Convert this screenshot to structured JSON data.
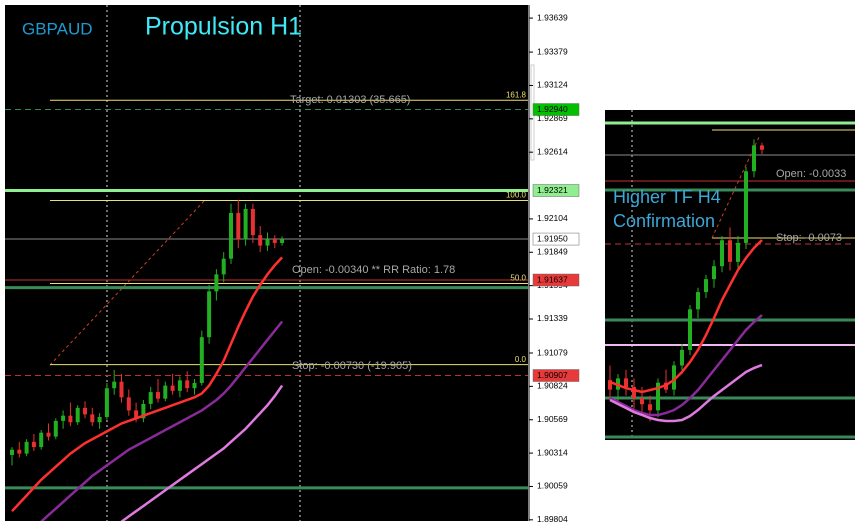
{
  "chart_data": [
    {
      "type": "candlestick",
      "symbol": "GBPAUD",
      "title": "Propulsion H1",
      "ylim": [
        1.89795,
        1.93739
      ],
      "yticks": [
        1.93639,
        1.93379,
        1.93124,
        1.92869,
        1.92614,
        1.92104,
        1.91849,
        1.91594,
        1.91339,
        1.91079,
        1.90824,
        1.90569,
        1.90314,
        1.90059,
        1.89804
      ],
      "up_color": "#22b022",
      "down_color": "#e83030",
      "open": [
        1.903,
        1.9034,
        1.9031,
        1.904,
        1.9036,
        1.9047,
        1.9044,
        1.9056,
        1.906,
        1.9055,
        1.9066,
        1.9061,
        1.9055,
        1.9059,
        1.9081,
        1.9086,
        1.9074,
        1.9064,
        1.9058,
        1.9069,
        1.9078,
        1.9073,
        1.9083,
        1.9079,
        1.9087,
        1.9081,
        1.9085,
        1.912,
        1.9155,
        1.9168,
        1.918,
        1.9215,
        1.9195,
        1.9218,
        1.9198,
        1.919,
        1.9195,
        1.9192
      ],
      "high": [
        1.9036,
        1.904,
        1.9042,
        1.9046,
        1.9049,
        1.9054,
        1.9058,
        1.9064,
        1.907,
        1.9068,
        1.9071,
        1.9066,
        1.9062,
        1.9085,
        1.9095,
        1.9092,
        1.908,
        1.907,
        1.9072,
        1.9082,
        1.9088,
        1.9086,
        1.9092,
        1.909,
        1.9094,
        1.9088,
        1.9125,
        1.916,
        1.9172,
        1.9185,
        1.9222,
        1.9225,
        1.9222,
        1.9222,
        1.9205,
        1.92,
        1.9198,
        1.9197
      ],
      "low": [
        1.9022,
        1.9028,
        1.9029,
        1.9033,
        1.9034,
        1.9041,
        1.9042,
        1.905,
        1.9052,
        1.9053,
        1.9058,
        1.9052,
        1.905,
        1.9057,
        1.9076,
        1.907,
        1.906,
        1.9055,
        1.9055,
        1.9065,
        1.907,
        1.9071,
        1.9076,
        1.9074,
        1.9078,
        1.9076,
        1.9083,
        1.9115,
        1.9148,
        1.9162,
        1.9176,
        1.9188,
        1.919,
        1.9192,
        1.9185,
        1.9186,
        1.9188,
        1.919
      ],
      "close": [
        1.9034,
        1.9031,
        1.904,
        1.9036,
        1.9047,
        1.9044,
        1.9056,
        1.906,
        1.9055,
        1.9066,
        1.9061,
        1.9055,
        1.9059,
        1.9081,
        1.9086,
        1.9074,
        1.9064,
        1.9058,
        1.9069,
        1.9078,
        1.9073,
        1.9083,
        1.9079,
        1.9087,
        1.9081,
        1.9085,
        1.912,
        1.9155,
        1.9168,
        1.918,
        1.9215,
        1.9195,
        1.9218,
        1.9198,
        1.919,
        1.9195,
        1.9192,
        1.9195
      ],
      "lines": [
        {
          "color": "#ff3030",
          "values": [
            1.8987,
            1.8993,
            1.8999,
            1.9005,
            1.9011,
            1.9016,
            1.9021,
            1.9026,
            1.9031,
            1.9035,
            1.9039,
            1.9042,
            1.9045,
            1.9048,
            1.9051,
            1.9054,
            1.9056,
            1.9058,
            1.906,
            1.9062,
            1.9064,
            1.9066,
            1.9068,
            1.907,
            1.9072,
            1.9074,
            1.9077,
            1.9083,
            1.9092,
            1.9102,
            1.9115,
            1.9128,
            1.914,
            1.9151,
            1.916,
            1.9168,
            1.9175,
            1.9181
          ]
        },
        {
          "color": "#8a2a9a",
          "values": [
            null,
            null,
            null,
            null,
            1.8979,
            1.8984,
            1.8989,
            1.8994,
            1.8999,
            1.9004,
            1.9009,
            1.9014,
            1.9018,
            1.9022,
            1.9026,
            1.903,
            1.9034,
            1.9037,
            1.904,
            1.9043,
            1.9046,
            1.9049,
            1.9052,
            1.9055,
            1.9058,
            1.9061,
            1.9064,
            1.9068,
            1.9072,
            1.9077,
            1.9083,
            1.909,
            1.9097,
            1.9104,
            1.9111,
            1.9118,
            1.9125,
            1.9132
          ]
        },
        {
          "color": "#e07ae0",
          "values": [
            null,
            null,
            null,
            null,
            null,
            null,
            null,
            null,
            null,
            null,
            null,
            null,
            null,
            null,
            null,
            1.8979,
            1.8983,
            1.8987,
            1.8991,
            1.8995,
            1.8999,
            1.9003,
            1.9007,
            1.9011,
            1.9015,
            1.9019,
            1.9023,
            1.9027,
            1.9031,
            1.9035,
            1.904,
            1.9045,
            1.905,
            1.9056,
            1.9062,
            1.9068,
            1.9075,
            1.9083
          ]
        }
      ],
      "levels": [
        {
          "value": 1.9294,
          "color": "#2e8b57",
          "style": "dashed"
        },
        {
          "value": 1.92321,
          "color": "#90ee90",
          "style": "thick"
        },
        {
          "value": 1.9195,
          "color": "#8a8a8a",
          "style": "solid"
        },
        {
          "value": 1.91637,
          "color": "#c03030",
          "style": "solid"
        },
        {
          "value": 1.91579,
          "color": "#3a8a5a",
          "style": "thick"
        },
        {
          "value": 1.90907,
          "color": "#c03030",
          "style": "dashed"
        },
        {
          "value": 1.90048,
          "color": "#3a8a5a",
          "style": "thick"
        }
      ],
      "fib_levels": [
        {
          "value": 1.93011,
          "label": "161.8"
        },
        {
          "value": 1.92245,
          "label": "100.0"
        },
        {
          "value": 1.9161,
          "label": "50.0"
        },
        {
          "value": 1.9099,
          "label": "0.0"
        }
      ],
      "price_labels": [
        {
          "value": 1.9294,
          "label": "1.92940",
          "color": "#00c000"
        },
        {
          "value": 1.92321,
          "label": "1.92321",
          "color": "#90ee90"
        },
        {
          "value": 1.9195,
          "label": "1.91950",
          "color": "#ffffff"
        },
        {
          "value": 1.91637,
          "label": "1.91637",
          "color": "#e83a3a"
        },
        {
          "value": 1.90907,
          "label": "1.90907",
          "color": "#e83a3a"
        }
      ],
      "annotations": [
        "Target: 0.01303 (35.665)",
        "Open: -0.00340 ** RR Ratio: 1.78",
        "Stop: -0.00730 (-19.905)"
      ]
    },
    {
      "type": "candlestick",
      "title_lines": [
        "Higher TF H4",
        "Confirmation"
      ],
      "ylim": [
        1.88636,
        1.9246
      ],
      "up_color": "#22b022",
      "down_color": "#e83030",
      "open": [
        1.8933,
        1.8922,
        1.8935,
        1.8925,
        1.8912,
        1.8905,
        1.8898,
        1.893,
        1.8922,
        1.895,
        1.8968,
        1.9015,
        1.9035,
        1.905,
        1.9065,
        1.9095,
        1.907,
        1.9092,
        1.9175,
        1.9205
      ],
      "high": [
        1.895,
        1.894,
        1.8945,
        1.8935,
        1.8925,
        1.8915,
        1.8935,
        1.8945,
        1.8955,
        1.8975,
        1.902,
        1.904,
        1.9055,
        1.9072,
        1.91,
        1.911,
        1.91,
        1.918,
        1.9212,
        1.9208
      ],
      "low": [
        1.891,
        1.8905,
        1.8915,
        1.89,
        1.8895,
        1.8885,
        1.889,
        1.8918,
        1.8915,
        1.894,
        1.8962,
        1.9005,
        1.9028,
        1.904,
        1.9058,
        1.906,
        1.9062,
        1.9085,
        1.9168,
        1.9195
      ],
      "close": [
        1.8922,
        1.8935,
        1.8925,
        1.8912,
        1.8905,
        1.8898,
        1.893,
        1.8922,
        1.895,
        1.8968,
        1.9015,
        1.9035,
        1.905,
        1.9065,
        1.9095,
        1.907,
        1.9092,
        1.9175,
        1.9205,
        1.92
      ],
      "lines": [
        {
          "color": "#ff3030",
          "values": [
            1.89308,
            1.89273,
            1.89238,
            1.89215,
            1.89192,
            1.89215,
            1.89238,
            1.89273,
            1.89331,
            1.89424,
            1.8954,
            1.89679,
            1.89853,
            1.9005,
            1.90258,
            1.90432,
            1.90606,
            1.90745,
            1.90861,
            1.90953
          ]
        },
        {
          "color": "#8a2a9a",
          "values": [
            1.89122,
            1.89076,
            1.8903,
            1.88983,
            1.88949,
            1.88925,
            1.88925,
            1.88949,
            1.88983,
            1.89041,
            1.89122,
            1.89215,
            1.89331,
            1.89447,
            1.89563,
            1.89679,
            1.89795,
            1.89911,
            1.90003,
            1.90084
          ]
        },
        {
          "color": "#e07ae0",
          "values": [
            1.89099,
            1.89053,
            1.89007,
            1.8896,
            1.88926,
            1.88891,
            1.88868,
            1.88856,
            1.88856,
            1.88868,
            1.88914,
            1.88983,
            1.89065,
            1.89146,
            1.89215,
            1.89285,
            1.89354,
            1.89424,
            1.8947,
            1.89505
          ]
        }
      ],
      "annotations": [
        "Open: -0.0033",
        "Stop: -0.0073"
      ]
    }
  ]
}
